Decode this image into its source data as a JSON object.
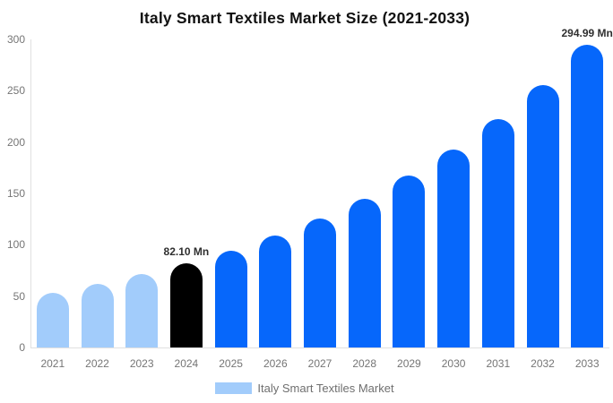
{
  "title": "Italy Smart Textiles Market Size (2021-2033)",
  "legend": {
    "label": "Italy Smart Textiles Market",
    "swatch_color": "#a2ccfb"
  },
  "colors": {
    "historical_bar": "#a2ccfb",
    "highlight_bar": "#000000",
    "forecast_bar": "#0667fb",
    "axis_line": "#e0e0e0",
    "tick_text": "#757575",
    "annotation_text": "#2f2f2f",
    "title_text": "#111111"
  },
  "chart_data": {
    "type": "bar",
    "title": "Italy Smart Textiles Market Size (2021-2033)",
    "unit": "Mn",
    "categories": [
      "2021",
      "2022",
      "2023",
      "2024",
      "2025",
      "2026",
      "2027",
      "2028",
      "2029",
      "2030",
      "2031",
      "2032",
      "2033"
    ],
    "values": [
      53.6,
      61.8,
      71.2,
      82.1,
      94.6,
      109.1,
      125.7,
      145.0,
      167.1,
      192.6,
      222.0,
      255.9,
      294.99
    ],
    "bar_roles": [
      "historical",
      "historical",
      "historical",
      "highlight",
      "forecast",
      "forecast",
      "forecast",
      "forecast",
      "forecast",
      "forecast",
      "forecast",
      "forecast",
      "forecast"
    ],
    "annotations": [
      {
        "category": "2024",
        "text": "82.10 Mn"
      },
      {
        "category": "2033",
        "text": "294.99 Mn"
      }
    ],
    "xlabel": "",
    "ylabel": "",
    "ylim": [
      0,
      300
    ],
    "yticks": [
      0,
      50,
      100,
      150,
      200,
      250,
      300
    ],
    "grid": false,
    "legend_position": "bottom",
    "legend_entries": [
      "Italy Smart Textiles Market"
    ]
  }
}
